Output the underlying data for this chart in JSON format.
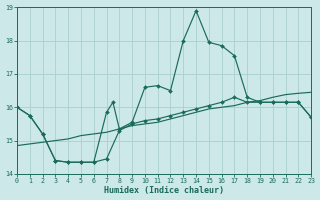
{
  "xlabel": "Humidex (Indice chaleur)",
  "bg_color": "#cce8e8",
  "grid_color": "#aacfcf",
  "line_color": "#1a6b5a",
  "xlim": [
    0,
    23
  ],
  "ylim": [
    14,
    19
  ],
  "xticks": [
    0,
    1,
    2,
    3,
    4,
    5,
    6,
    7,
    8,
    9,
    10,
    11,
    12,
    13,
    14,
    15,
    16,
    17,
    18,
    19,
    20,
    21,
    22,
    23
  ],
  "yticks": [
    14,
    15,
    16,
    17,
    18,
    19
  ],
  "line_top_x": [
    0,
    1,
    2,
    3,
    4,
    5,
    6,
    7,
    7.5,
    8,
    9,
    10,
    11,
    12,
    13,
    14,
    15,
    16,
    17,
    18,
    19,
    20,
    21,
    22,
    23
  ],
  "line_top_y": [
    16.0,
    15.75,
    15.2,
    14.4,
    14.35,
    14.35,
    14.35,
    15.85,
    16.15,
    15.35,
    15.55,
    16.6,
    16.65,
    16.5,
    18.0,
    18.9,
    17.95,
    17.85,
    17.55,
    16.3,
    16.15,
    16.15,
    16.15,
    16.15,
    15.7
  ],
  "line_bot_x": [
    0,
    1,
    2,
    3,
    4,
    5,
    6,
    7,
    8,
    9,
    10,
    11,
    12,
    13,
    14,
    15,
    16,
    17,
    18,
    19,
    20,
    21,
    22,
    23
  ],
  "line_bot_y": [
    16.0,
    15.75,
    15.2,
    14.4,
    14.35,
    14.35,
    14.35,
    14.45,
    15.3,
    15.5,
    15.6,
    15.65,
    15.75,
    15.85,
    15.95,
    16.05,
    16.15,
    16.3,
    16.15,
    16.15,
    16.15,
    16.15,
    16.15,
    15.7
  ],
  "line_diag_x": [
    0,
    1,
    2,
    3,
    4,
    5,
    6,
    7,
    8,
    9,
    10,
    11,
    12,
    13,
    14,
    15,
    16,
    17,
    18,
    19,
    20,
    21,
    22,
    23
  ],
  "line_diag_y": [
    14.85,
    14.9,
    14.95,
    15.0,
    15.05,
    15.15,
    15.2,
    15.25,
    15.35,
    15.45,
    15.5,
    15.55,
    15.65,
    15.75,
    15.85,
    15.95,
    16.0,
    16.05,
    16.15,
    16.2,
    16.3,
    16.38,
    16.42,
    16.45
  ]
}
